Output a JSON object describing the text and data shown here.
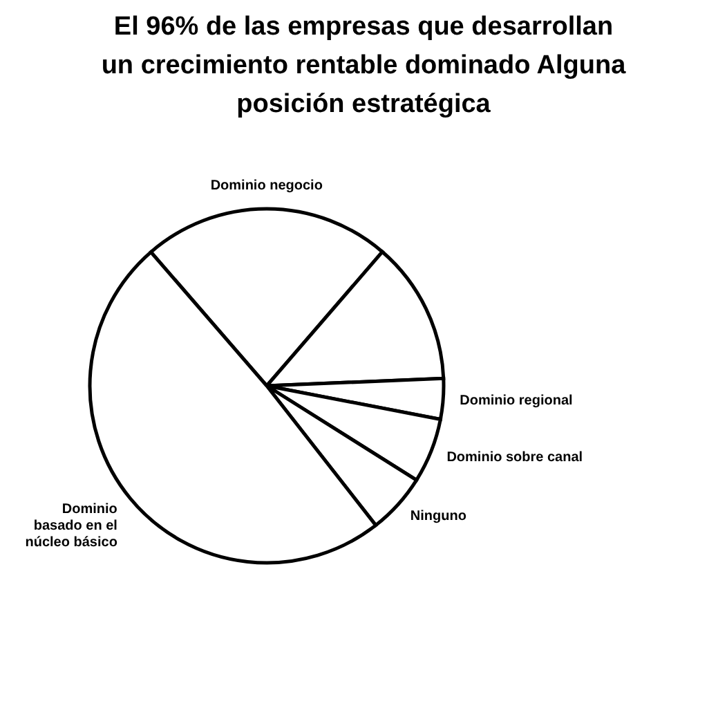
{
  "chart_data": {
    "type": "pie",
    "title": "El 96% de las empresas que  desarrollan un crecimiento rentable dominado Alguna posición estratégica",
    "categories": [
      "Dominio negocio",
      null,
      "Dominio regional",
      "Dominio sobre canal",
      "Ninguno",
      "Dominio basado en el núcleo básico"
    ],
    "values": [
      22.7,
      13.0,
      3.7,
      5.9,
      5.5,
      49.2
    ],
    "colors": [
      "#ffffff",
      "#ffffff",
      "#ffffff",
      "#ffffff",
      "#ffffff",
      "#ffffff"
    ],
    "legend": false
  }
}
